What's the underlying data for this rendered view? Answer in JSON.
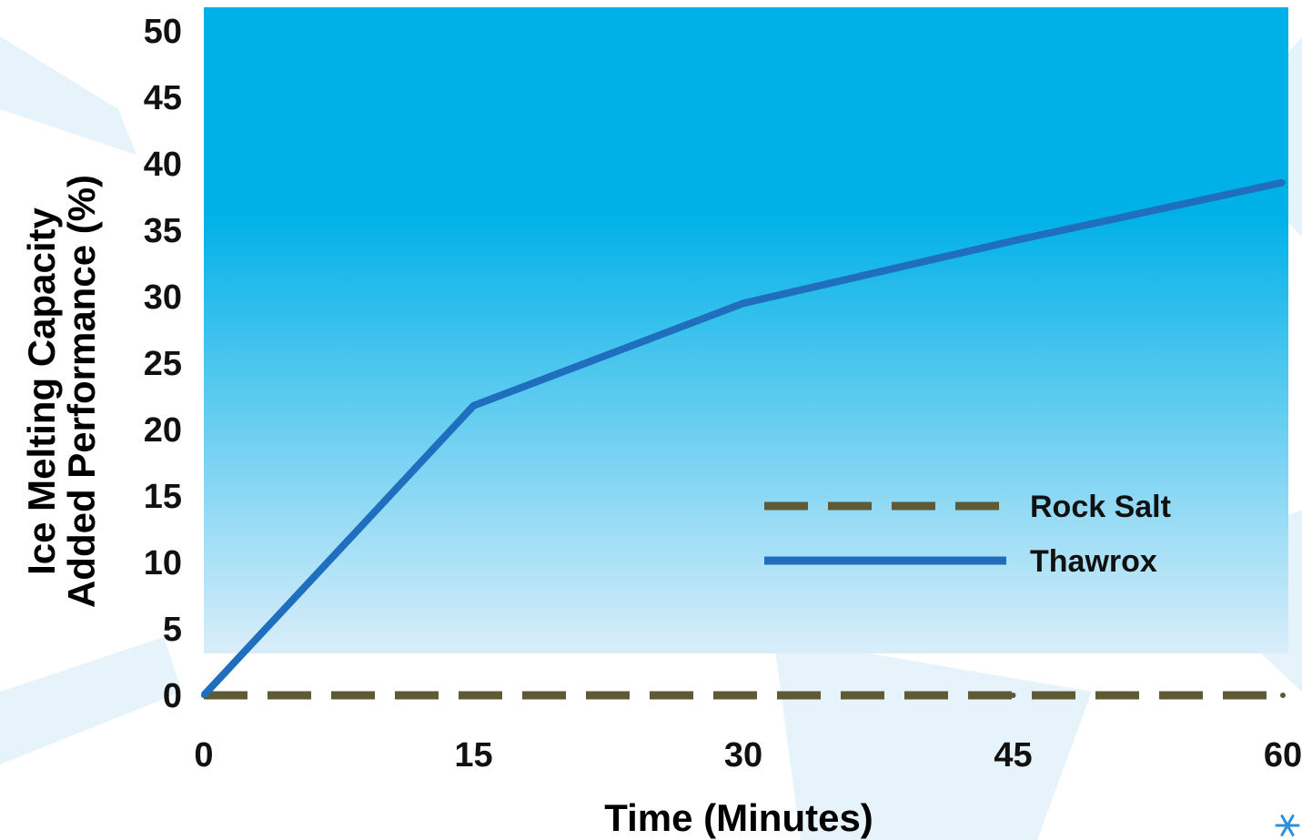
{
  "chart_data": {
    "type": "line",
    "xlabel": "Time (Minutes)",
    "ylabel_lines": [
      "Ice Melting Capacity",
      "Added Performance (%)"
    ],
    "x_ticks": [
      "0",
      "15",
      "30",
      "45",
      "60"
    ],
    "y_ticks": [
      "0",
      "5",
      "10",
      "15",
      "20",
      "25",
      "30",
      "35",
      "40",
      "45",
      "50"
    ],
    "xlim": [
      0,
      60
    ],
    "ylim": [
      0,
      50
    ],
    "grid": false,
    "legend_position": "right",
    "series": [
      {
        "name": "Rock Salt",
        "style": "dashed",
        "color": "#5e5a35",
        "x": [
          0,
          15,
          30,
          45,
          60
        ],
        "y": [
          0,
          0,
          0,
          0,
          0
        ]
      },
      {
        "name": "Thawrox",
        "style": "solid",
        "color": "#1f6fbe",
        "x": [
          0,
          15,
          30,
          45,
          60
        ],
        "y": [
          0,
          21.8,
          29.5,
          34.2,
          38.6
        ]
      }
    ]
  },
  "colors": {
    "plot_top": "#00b1e8",
    "plot_bottom": "#daeefa",
    "watermark": "#e6f3fb",
    "snowflake": "#2f8fd6"
  },
  "icons": {
    "corner": "snowflake-icon"
  }
}
